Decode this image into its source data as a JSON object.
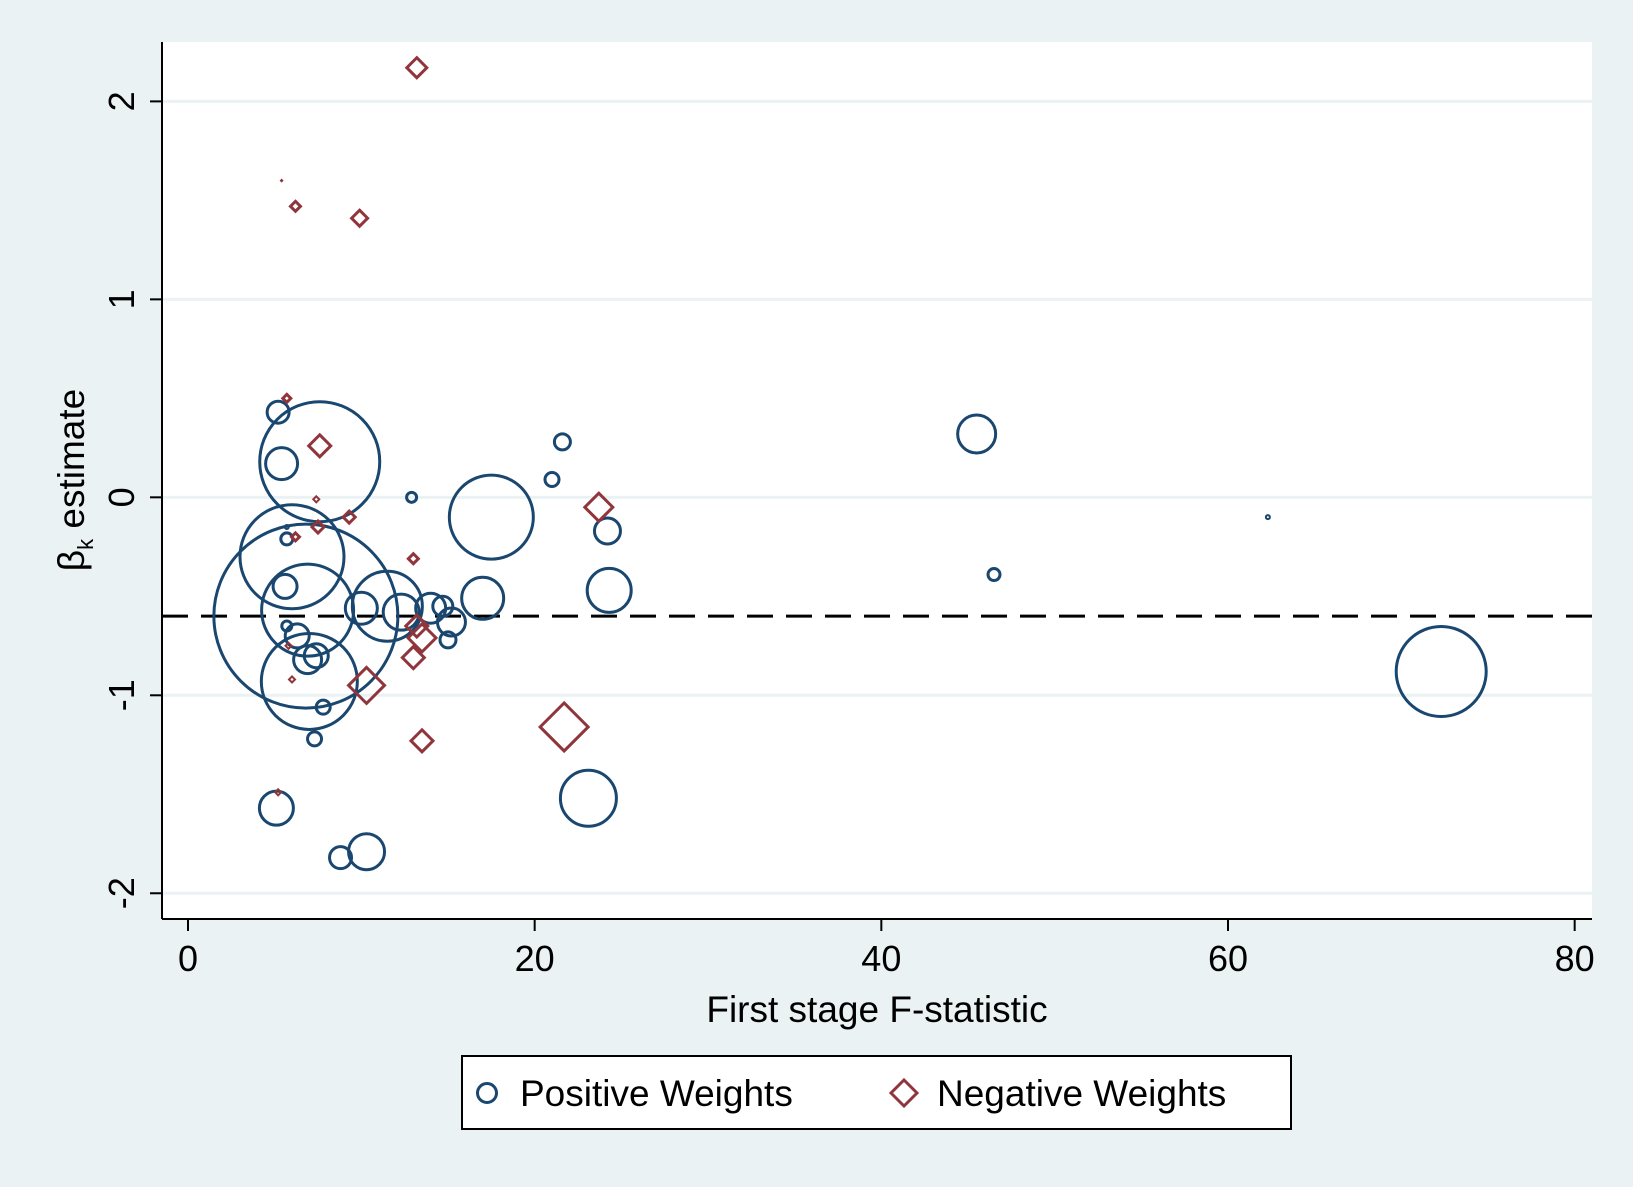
{
  "chart_data": {
    "type": "scatter",
    "title": "",
    "xlabel": "First stage F-statistic",
    "ylabel_main": "β",
    "ylabel_sub": "k",
    "ylabel_rest": " estimate",
    "xlim": [
      -1.5,
      81
    ],
    "ylim": [
      -2.13,
      2.3
    ],
    "xticks": [
      0,
      20,
      40,
      60,
      80
    ],
    "xtick_labels": [
      "0",
      "20",
      "40",
      "60",
      "80"
    ],
    "yticks": [
      -2,
      -1,
      0,
      1,
      2
    ],
    "ytick_labels": [
      "-2",
      "-1",
      "0",
      "1",
      "2"
    ],
    "grid": "horizontal",
    "reference_line": {
      "y": -0.6,
      "style": "dashed"
    },
    "legend_position": "bottom",
    "colors": {
      "positive": "#1a476f",
      "negative": "#90353b",
      "background": "#eaf2f3",
      "plot_area": "#ffffff",
      "grid": "#eaf2f3"
    },
    "series": [
      {
        "name": "Positive Weights",
        "marker": "circle",
        "points": [
          {
            "x": 5.2,
            "y": 0.43,
            "s": 11
          },
          {
            "x": 5.4,
            "y": 0.17,
            "s": 16
          },
          {
            "x": 7.6,
            "y": 0.18,
            "s": 60
          },
          {
            "x": 5.7,
            "y": -0.15,
            "s": 2
          },
          {
            "x": 5.7,
            "y": -0.21,
            "s": 6
          },
          {
            "x": 6.0,
            "y": -0.3,
            "s": 52
          },
          {
            "x": 5.6,
            "y": -0.45,
            "s": 12
          },
          {
            "x": 6.9,
            "y": -0.57,
            "s": 46
          },
          {
            "x": 5.7,
            "y": -0.65,
            "s": 5
          },
          {
            "x": 6.8,
            "y": -0.6,
            "s": 92
          },
          {
            "x": 6.3,
            "y": -0.7,
            "s": 12
          },
          {
            "x": 6.9,
            "y": -0.82,
            "s": 14
          },
          {
            "x": 7.4,
            "y": -0.8,
            "s": 12
          },
          {
            "x": 7.0,
            "y": -0.93,
            "s": 48
          },
          {
            "x": 7.8,
            "y": -1.06,
            "s": 7
          },
          {
            "x": 7.3,
            "y": -1.22,
            "s": 7
          },
          {
            "x": 5.1,
            "y": -1.57,
            "s": 17
          },
          {
            "x": 8.8,
            "y": -1.82,
            "s": 11
          },
          {
            "x": 10.3,
            "y": -1.79,
            "s": 18
          },
          {
            "x": 10.0,
            "y": -0.56,
            "s": 16
          },
          {
            "x": 11.5,
            "y": -0.55,
            "s": 35
          },
          {
            "x": 12.3,
            "y": -0.58,
            "s": 18
          },
          {
            "x": 14.0,
            "y": -0.56,
            "s": 15
          },
          {
            "x": 14.7,
            "y": -0.55,
            "s": 10
          },
          {
            "x": 15.2,
            "y": -0.63,
            "s": 14
          },
          {
            "x": 15.0,
            "y": -0.72,
            "s": 8
          },
          {
            "x": 12.9,
            "y": 0.0,
            "s": 5
          },
          {
            "x": 17.0,
            "y": -0.51,
            "s": 21
          },
          {
            "x": 17.5,
            "y": -0.1,
            "s": 42
          },
          {
            "x": 21.0,
            "y": 0.09,
            "s": 7
          },
          {
            "x": 21.6,
            "y": 0.28,
            "s": 8
          },
          {
            "x": 24.2,
            "y": -0.17,
            "s": 13
          },
          {
            "x": 24.3,
            "y": -0.47,
            "s": 22
          },
          {
            "x": 23.1,
            "y": -1.52,
            "s": 28
          },
          {
            "x": 45.5,
            "y": 0.32,
            "s": 19
          },
          {
            "x": 46.5,
            "y": -0.39,
            "s": 6
          },
          {
            "x": 62.3,
            "y": -0.1,
            "s": 2
          },
          {
            "x": 72.3,
            "y": -0.88,
            "s": 45
          }
        ]
      },
      {
        "name": "Negative Weights",
        "marker": "diamond",
        "points": [
          {
            "x": 13.2,
            "y": 2.17,
            "s": 10
          },
          {
            "x": 5.4,
            "y": 1.6,
            "s": 0.6
          },
          {
            "x": 6.2,
            "y": 1.47,
            "s": 5
          },
          {
            "x": 9.9,
            "y": 1.41,
            "s": 8
          },
          {
            "x": 5.7,
            "y": 0.5,
            "s": 4
          },
          {
            "x": 7.6,
            "y": 0.26,
            "s": 11
          },
          {
            "x": 7.4,
            "y": -0.01,
            "s": 3
          },
          {
            "x": 9.3,
            "y": -0.1,
            "s": 6
          },
          {
            "x": 7.5,
            "y": -0.15,
            "s": 6
          },
          {
            "x": 6.2,
            "y": -0.2,
            "s": 4
          },
          {
            "x": 13.0,
            "y": -0.31,
            "s": 5
          },
          {
            "x": 23.7,
            "y": -0.05,
            "s": 14
          },
          {
            "x": 13.2,
            "y": -0.65,
            "s": 11
          },
          {
            "x": 13.5,
            "y": -0.71,
            "s": 14
          },
          {
            "x": 13.0,
            "y": -0.81,
            "s": 11
          },
          {
            "x": 5.8,
            "y": -0.75,
            "s": 3
          },
          {
            "x": 6.0,
            "y": -0.92,
            "s": 3
          },
          {
            "x": 10.3,
            "y": -0.95,
            "s": 18
          },
          {
            "x": 13.5,
            "y": -1.23,
            "s": 11
          },
          {
            "x": 21.7,
            "y": -1.16,
            "s": 24
          },
          {
            "x": 5.2,
            "y": -1.49,
            "s": 3
          }
        ]
      }
    ]
  }
}
